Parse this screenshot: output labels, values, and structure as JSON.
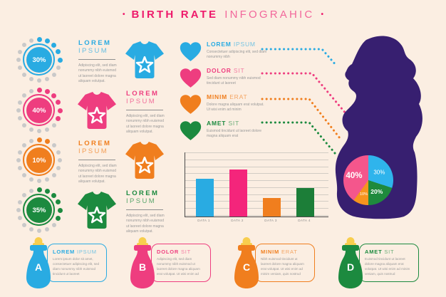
{
  "title": {
    "dot": "•",
    "main": "BIRTH RATE",
    "sub": "INFOGRAHIC"
  },
  "colors": {
    "blue": "#29ABE2",
    "pink": "#EE3D7F",
    "orange": "#F07E1E",
    "green": "#1C8A3F",
    "purple": "#371F70",
    "background": "#FBEEE2",
    "body_text": "#9A9A9A",
    "gray_dot": "#C9C9C9",
    "title_bold_pink": "#EE1A6B",
    "title_light_pink": "#F2679B",
    "nipple_yellow": "#F8CE4E",
    "axis": "#4A4A4A"
  },
  "rows": [
    {
      "percent": "30%",
      "value": 30,
      "color_key": "blue",
      "text_first": true,
      "title_word1": "LOREM",
      "title_word2": "IPSUM",
      "body": "Adipiscing elit, sed diam nonummy nibh euismod ut laoreet dolore magna aliquam volutpat."
    },
    {
      "percent": "40%",
      "value": 40,
      "color_key": "pink",
      "text_first": false,
      "title_word1": "LOREM",
      "title_word2": "IPSUM",
      "body": "Adipiscing elit, sed diam nonummy nibh euismod ut laoreet dolore magna aliquam volutpat."
    },
    {
      "percent": "10%",
      "value": 10,
      "color_key": "orange",
      "text_first": true,
      "title_word1": "LOREM",
      "title_word2": "IPSUM",
      "body": "Adipiscing elit, sed diam nonummy nibh euismod ut laoreet dolore magna aliquam volutpat."
    },
    {
      "percent": "35%",
      "value": 35,
      "color_key": "green",
      "text_first": false,
      "title_word1": "LOREM",
      "title_word2": "IPSUM",
      "body": "Adipiscing elit, sed diam nonummy nibh euismod ut laoreet dolore magna aliquam volutpat."
    }
  ],
  "hearts": [
    {
      "color_key": "blue",
      "title_word1": "LOREM",
      "title_word2": "IPSUM",
      "body": "Consectetuer adipiscing elit, sed diam nonummy nibh"
    },
    {
      "color_key": "pink",
      "title_word1": "DOLOR",
      "title_word2": "SIT",
      "body": "Sed diam nonummy nibh euismod tincidunt ut laoreet"
    },
    {
      "color_key": "orange",
      "title_word1": "MINIM",
      "title_word2": "ERAT",
      "body": "Dolore magna aliquam erat volutpat. Ut wisi enim ad minim"
    },
    {
      "color_key": "green",
      "title_word1": "AMET",
      "title_word2": "SIT",
      "body": "Euismod tincidunt ut laoreet dolore magna aliquam erat"
    }
  ],
  "connectors": [
    {
      "color_key": "blue"
    },
    {
      "color_key": "pink"
    },
    {
      "color_key": "orange"
    },
    {
      "color_key": "green"
    }
  ],
  "chart_data": [
    {
      "type": "bar",
      "categories": [
        "DATA 1",
        "DATA 2",
        "DATA 3",
        "DATA 4"
      ],
      "values": [
        60,
        75,
        30,
        46
      ],
      "series_colors": [
        "#29ABE2",
        "#F4257B",
        "#F07E1E",
        "#1C7E38"
      ],
      "title": "",
      "xlabel": "",
      "ylabel": "",
      "ylim": [
        0,
        100
      ],
      "grid": true,
      "gridline_count": 10,
      "legend": false
    },
    {
      "type": "pie",
      "labels": [
        "30%",
        "20%",
        "10%",
        "40%"
      ],
      "values": [
        30,
        20,
        10,
        40
      ],
      "colors": [
        "#2FB4EC",
        "#1F8A3D",
        "#F7941E",
        "#F4568C"
      ],
      "start_angle_deg": 0,
      "direction": "clockwise",
      "location": "pregnant-woman-belly"
    }
  ],
  "bottles": [
    {
      "letter": "A",
      "color_key": "blue",
      "title_word1": "LOREM",
      "title_word2": "IPSUM",
      "body": "Lorem ipsum dolor sit amet, consectetuer adipiscing elit, sed diam nonummy nibh euismod tincidunt ut laoreet"
    },
    {
      "letter": "B",
      "color_key": "pink",
      "title_word1": "DOLOR",
      "title_word2": "SIT",
      "body": "Adipiscing elit, sed diam nonummy nibh euismod ut laoreet dolore magna aliquam erat volutpat. Ut wisi enim ad"
    },
    {
      "letter": "C",
      "color_key": "orange",
      "title_word1": "MINIM",
      "title_word2": "ERAT",
      "body": "Nibh euismod tincidunt ut laoreet dolore magna aliquam erat volutpat. Ut wisi enim ad minim veniam, quis nostrud"
    },
    {
      "letter": "D",
      "color_key": "green",
      "title_word1": "AMET",
      "title_word2": "SIT",
      "body": "Euismod tincidunt ut laoreet dolore magna aliquam erat volutpat. Ut wisi enim ad minim veniam, quis nostrud"
    }
  ]
}
